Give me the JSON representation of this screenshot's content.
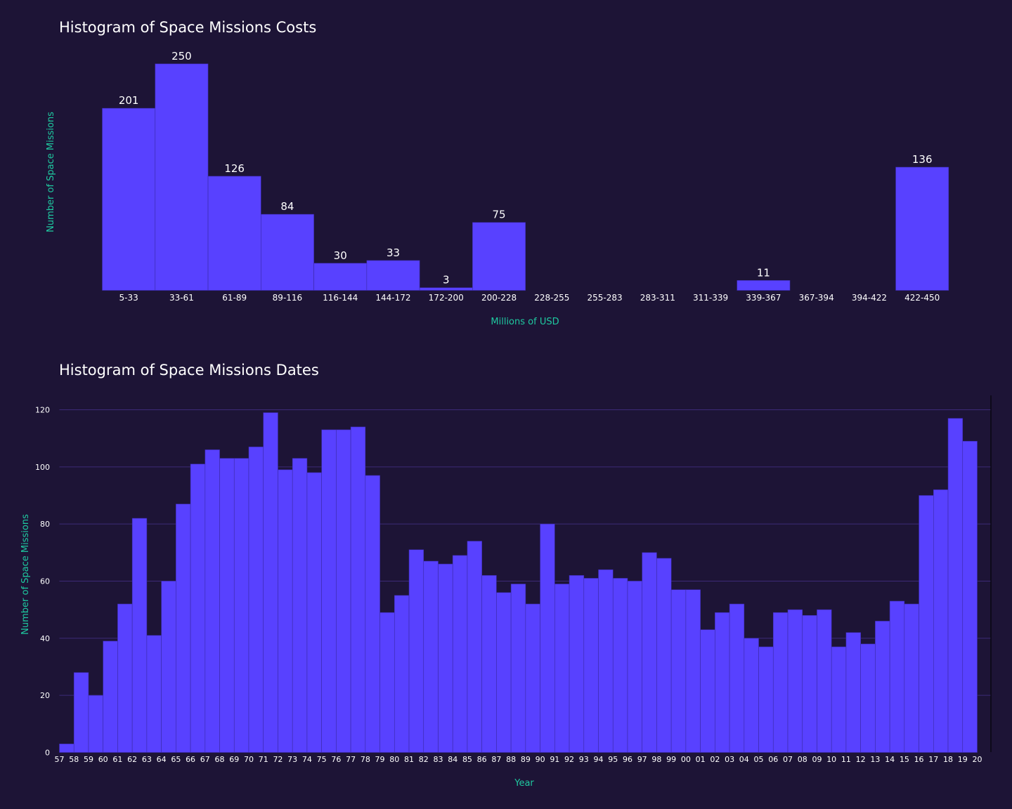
{
  "theme": {
    "background": "#1d1436",
    "bar_color": "#5841ff",
    "bar_edge": "#3b2aa8",
    "grid_color": "#3c2a78",
    "axis_label_color": "#1fc9a0",
    "text_color": "#ffffff"
  },
  "chart_data": [
    {
      "type": "bar",
      "title": "Histogram of Space Missions Costs",
      "xlabel": "Millions of USD",
      "ylabel": "Number of Space Missions",
      "categories": [
        "5-33",
        "33-61",
        "61-89",
        "89-116",
        "116-144",
        "144-172",
        "172-200",
        "200-228",
        "228-255",
        "255-283",
        "283-311",
        "311-339",
        "339-367",
        "367-394",
        "394-422",
        "422-450"
      ],
      "values": [
        201,
        250,
        126,
        84,
        30,
        33,
        3,
        75,
        0,
        0,
        0,
        0,
        11,
        0,
        0,
        136
      ],
      "data_labels": [
        "201",
        "250",
        "126",
        "84",
        "30",
        "33",
        "3",
        "75",
        "",
        "",
        "",
        "",
        "11",
        "",
        "",
        "136"
      ],
      "ylim": [
        0,
        250
      ],
      "grid": false
    },
    {
      "type": "bar",
      "title": "Histogram of Space Missions Dates",
      "xlabel": "Year",
      "ylabel": "Number of Space Missions",
      "categories": [
        "57",
        "58",
        "59",
        "60",
        "61",
        "62",
        "63",
        "64",
        "65",
        "66",
        "67",
        "68",
        "69",
        "70",
        "71",
        "72",
        "73",
        "74",
        "75",
        "76",
        "77",
        "78",
        "79",
        "80",
        "81",
        "82",
        "83",
        "84",
        "85",
        "86",
        "87",
        "88",
        "89",
        "90",
        "91",
        "92",
        "93",
        "94",
        "95",
        "96",
        "97",
        "98",
        "99",
        "00",
        "01",
        "02",
        "03",
        "04",
        "05",
        "06",
        "07",
        "08",
        "09",
        "10",
        "11",
        "12",
        "13",
        "14",
        "15",
        "16",
        "17",
        "18",
        "19",
        "20"
      ],
      "values": [
        3,
        28,
        20,
        39,
        52,
        82,
        41,
        60,
        87,
        101,
        106,
        103,
        103,
        107,
        119,
        99,
        103,
        98,
        113,
        113,
        114,
        97,
        49,
        55,
        71,
        67,
        66,
        69,
        74,
        62,
        56,
        59,
        52,
        80,
        59,
        62,
        61,
        64,
        61,
        60,
        70,
        68,
        57,
        57,
        43,
        49,
        52,
        40,
        37,
        49,
        50,
        48,
        50,
        37,
        42,
        38,
        46,
        53,
        52,
        90,
        92,
        117,
        109,
        0
      ],
      "yticks": [
        "0",
        "20",
        "40",
        "60",
        "80",
        "100",
        "120"
      ],
      "ylim": [
        0,
        120
      ],
      "grid": true
    }
  ]
}
